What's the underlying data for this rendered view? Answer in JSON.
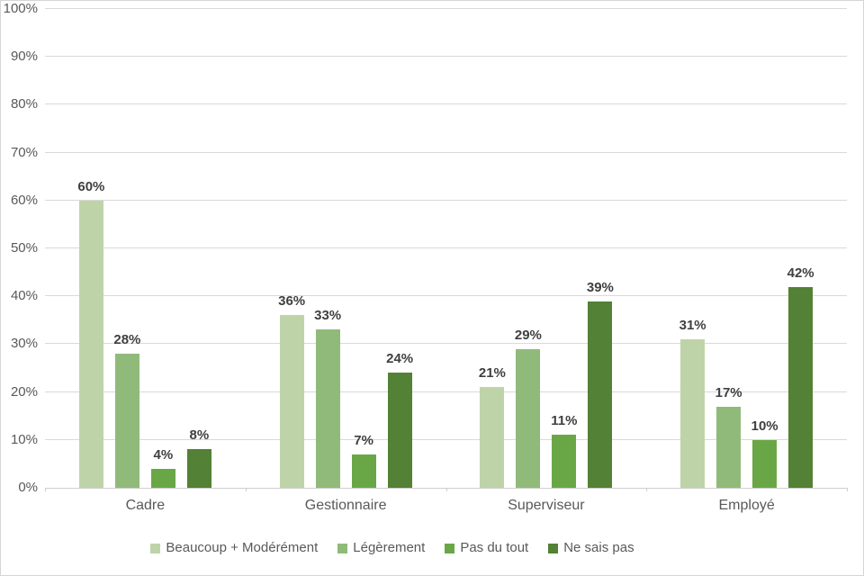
{
  "chart_data": {
    "type": "bar",
    "title": "",
    "categories": [
      "Cadre",
      "Gestionnaire",
      "Superviseur",
      "Employé"
    ],
    "series": [
      {
        "name": "Beaucoup + Modérément",
        "color": "#bed4a8",
        "values": [
          60,
          36,
          21,
          31
        ]
      },
      {
        "name": "Légèrement",
        "color": "#90ba79",
        "values": [
          28,
          33,
          29,
          17
        ]
      },
      {
        "name": "Pas du tout",
        "color": "#69a746",
        "values": [
          4,
          7,
          11,
          10
        ]
      },
      {
        "name": "Ne sais pas",
        "color": "#538135",
        "values": [
          8,
          24,
          39,
          42
        ]
      }
    ],
    "data_labels": [
      [
        "60%",
        "36%",
        "21%",
        "31%"
      ],
      [
        "28%",
        "33%",
        "29%",
        "17%"
      ],
      [
        "4%",
        "7%",
        "11%",
        "10%"
      ],
      [
        "8%",
        "24%",
        "39%",
        "42%"
      ]
    ],
    "y_axis": {
      "min": 0,
      "max": 100,
      "step": 10,
      "tick_labels": [
        "0%",
        "10%",
        "20%",
        "30%",
        "40%",
        "50%",
        "60%",
        "70%",
        "80%",
        "90%",
        "100%"
      ]
    },
    "grid": true,
    "legend_position": "bottom",
    "palette": {
      "background": "#ffffff",
      "chart_border": "#d6d6d6",
      "gridline": "#d9d9d9",
      "axis_line": "#cfcdcd",
      "tick_text": "#595959",
      "category_text": "#595959",
      "legend_text": "#595959",
      "data_label_text": "#3f3f3f"
    }
  }
}
